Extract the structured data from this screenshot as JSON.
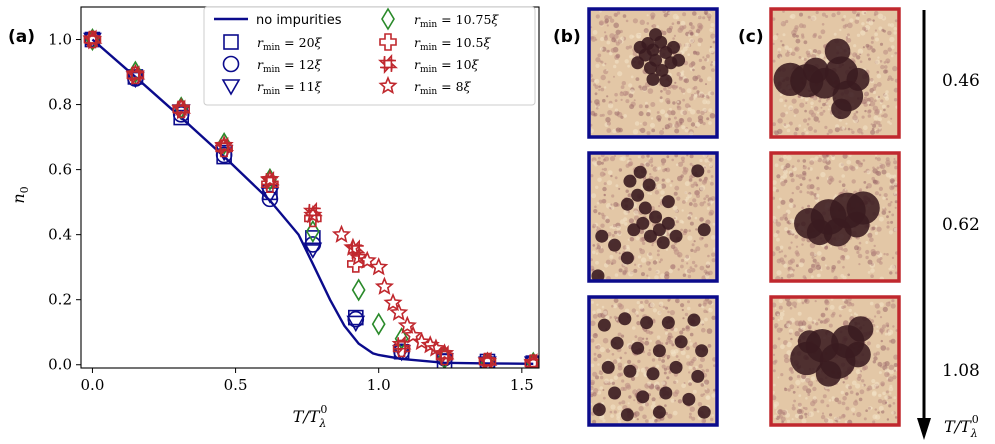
{
  "panel_labels": {
    "a": "(a)",
    "b": "(b)",
    "c": "(c)"
  },
  "colors": {
    "blue": "#0b0b8c",
    "green": "#2a8a2a",
    "red": "#c0282e",
    "texture_light": "#e3c7a6",
    "texture_dark": "#3a1b20"
  },
  "chart_data": {
    "type": "scatter",
    "xlabel": "T/T_λ^0",
    "ylabel": "n_0",
    "xlim": [
      -0.04,
      1.56
    ],
    "ylim": [
      -0.01,
      1.1
    ],
    "xticks": [
      0.0,
      0.5,
      1.0,
      1.5
    ],
    "xtick_labels": [
      "0.0",
      "0.5",
      "1.0",
      "1.5"
    ],
    "yticks": [
      0.0,
      0.2,
      0.4,
      0.6,
      0.8,
      1.0
    ],
    "ytick_labels": [
      "0.0",
      "0.2",
      "0.4",
      "0.6",
      "0.8",
      "1.0"
    ],
    "grid": false,
    "legend_position": "top-right",
    "line": {
      "name": "no impurities",
      "marker": "line",
      "color": "blue",
      "x": [
        0.0,
        0.15,
        0.31,
        0.46,
        0.62,
        0.72,
        0.77,
        0.83,
        0.88,
        0.93,
        0.98,
        1.0,
        1.08,
        1.23,
        1.38,
        1.54
      ],
      "y": [
        1.0,
        0.885,
        0.76,
        0.64,
        0.505,
        0.4,
        0.31,
        0.2,
        0.12,
        0.065,
        0.035,
        0.03,
        0.018,
        0.006,
        0.004,
        0.003
      ]
    },
    "series": [
      {
        "name": "r_min = 20ξ",
        "legend": "$r_{\\rm min} = 20\\xi$",
        "marker": "square",
        "color": "blue",
        "x": [
          0.0,
          0.15,
          0.31,
          0.46,
          0.62,
          0.77,
          0.92,
          1.08,
          1.23,
          1.38,
          1.54
        ],
        "y": [
          1.0,
          0.885,
          0.76,
          0.64,
          0.53,
          0.39,
          0.145,
          0.04,
          0.01,
          0.01,
          0.005
        ]
      },
      {
        "name": "r_min = 12ξ",
        "legend": "$r_{\\rm min} = 12\\xi$",
        "marker": "circle",
        "color": "blue",
        "x": [
          0.0,
          0.15,
          0.31,
          0.46,
          0.62,
          0.77,
          0.92,
          1.08,
          1.23,
          1.38,
          1.54
        ],
        "y": [
          1.0,
          0.88,
          0.77,
          0.645,
          0.51,
          0.37,
          0.14,
          0.04,
          0.02,
          0.005,
          0.005
        ]
      },
      {
        "name": "r_min = 11ξ",
        "legend": "$r_{\\rm min} = 11\\xi$",
        "marker": "triangle-down",
        "color": "blue",
        "x": [
          0.0,
          0.15,
          0.31,
          0.46,
          0.62,
          0.77,
          0.92,
          1.08,
          1.23,
          1.38,
          1.54
        ],
        "y": [
          1.0,
          0.88,
          0.78,
          0.655,
          0.525,
          0.355,
          0.13,
          0.04,
          0.015,
          0.005,
          0.005
        ]
      },
      {
        "name": "r_min = 10.75ξ",
        "legend": "$r_{\\rm min} = 10.75\\xi$",
        "marker": "diamond",
        "color": "green",
        "x": [
          0.0,
          0.15,
          0.31,
          0.46,
          0.62,
          0.77,
          0.93,
          1.0,
          1.08,
          1.23,
          1.38,
          1.54
        ],
        "y": [
          1.0,
          0.9,
          0.79,
          0.68,
          0.57,
          0.41,
          0.23,
          0.125,
          0.08,
          0.02,
          0.005,
          0.005
        ]
      },
      {
        "name": "r_min = 10.5ξ",
        "legend": "$r_{\\rm min} = 10.5\\xi$",
        "marker": "cross",
        "color": "red",
        "x": [
          0.0,
          0.15,
          0.31,
          0.46,
          0.62,
          0.77,
          0.92,
          1.08,
          1.23,
          1.38,
          1.54
        ],
        "y": [
          1.0,
          0.89,
          0.785,
          0.665,
          0.555,
          0.45,
          0.31,
          0.05,
          0.025,
          0.01,
          0.005
        ]
      },
      {
        "name": "r_min = 10ξ",
        "legend": "$r_{\\rm min} = 10\\xi$",
        "marker": "x-circle",
        "color": "red",
        "x": [
          0.0,
          0.15,
          0.31,
          0.46,
          0.62,
          0.77,
          0.92,
          1.08,
          1.23,
          1.38,
          1.54
        ],
        "y": [
          1.0,
          0.89,
          0.785,
          0.67,
          0.565,
          0.47,
          0.355,
          0.06,
          0.03,
          0.01,
          0.005
        ]
      },
      {
        "name": "r_min = 8ξ",
        "legend": "$r_{\\rm min} = 8\\xi$",
        "marker": "star",
        "color": "red",
        "x": [
          0.0,
          0.15,
          0.31,
          0.46,
          0.62,
          0.77,
          0.87,
          0.91,
          0.93,
          0.96,
          1.0,
          1.02,
          1.05,
          1.07,
          1.1,
          1.12,
          1.15,
          1.18,
          1.2,
          1.23,
          1.38,
          1.54
        ],
        "y": [
          1.0,
          0.895,
          0.79,
          0.675,
          0.57,
          0.46,
          0.4,
          0.36,
          0.33,
          0.32,
          0.3,
          0.24,
          0.19,
          0.16,
          0.12,
          0.09,
          0.07,
          0.06,
          0.05,
          0.035,
          0.01,
          0.005
        ]
      }
    ]
  },
  "columns": {
    "b": {
      "border_color": "blue",
      "blob_style": "dots",
      "clusters": [
        [
          [
            0.5,
            0.32
          ],
          [
            0.46,
            0.27
          ],
          [
            0.56,
            0.26
          ],
          [
            0.6,
            0.34
          ],
          [
            0.52,
            0.4
          ],
          [
            0.44,
            0.36
          ],
          [
            0.4,
            0.3
          ],
          [
            0.64,
            0.42
          ],
          [
            0.57,
            0.48
          ],
          [
            0.48,
            0.46
          ],
          [
            0.52,
            0.2
          ],
          [
            0.66,
            0.3
          ],
          [
            0.38,
            0.42
          ],
          [
            0.7,
            0.4
          ],
          [
            0.6,
            0.56
          ],
          [
            0.5,
            0.55
          ]
        ],
        [
          [
            0.4,
            0.15
          ],
          [
            0.32,
            0.22
          ],
          [
            0.47,
            0.25
          ],
          [
            0.38,
            0.33
          ],
          [
            0.3,
            0.4
          ],
          [
            0.44,
            0.43
          ],
          [
            0.52,
            0.5
          ],
          [
            0.42,
            0.55
          ],
          [
            0.55,
            0.6
          ],
          [
            0.62,
            0.55
          ],
          [
            0.68,
            0.65
          ],
          [
            0.48,
            0.65
          ],
          [
            0.58,
            0.7
          ],
          [
            0.35,
            0.6
          ],
          [
            0.62,
            0.38
          ],
          [
            0.1,
            0.65
          ],
          [
            0.2,
            0.72
          ],
          [
            0.07,
            0.96
          ],
          [
            0.3,
            0.82
          ],
          [
            0.85,
            0.14
          ],
          [
            0.9,
            0.6
          ]
        ],
        [
          [
            0.12,
            0.22
          ],
          [
            0.28,
            0.17
          ],
          [
            0.45,
            0.2
          ],
          [
            0.62,
            0.2
          ],
          [
            0.82,
            0.18
          ],
          [
            0.22,
            0.36
          ],
          [
            0.38,
            0.4
          ],
          [
            0.55,
            0.42
          ],
          [
            0.72,
            0.35
          ],
          [
            0.88,
            0.42
          ],
          [
            0.15,
            0.55
          ],
          [
            0.32,
            0.58
          ],
          [
            0.5,
            0.6
          ],
          [
            0.68,
            0.55
          ],
          [
            0.85,
            0.62
          ],
          [
            0.2,
            0.75
          ],
          [
            0.42,
            0.78
          ],
          [
            0.6,
            0.75
          ],
          [
            0.78,
            0.8
          ],
          [
            0.3,
            0.92
          ],
          [
            0.55,
            0.9
          ],
          [
            0.08,
            0.88
          ],
          [
            0.9,
            0.9
          ]
        ]
      ]
    },
    "c": {
      "border_color": "red",
      "blob_style": "solid",
      "clusters": [
        [
          [
            0.15,
            0.55,
            0.13
          ],
          [
            0.28,
            0.56,
            0.13
          ],
          [
            0.42,
            0.58,
            0.12
          ],
          [
            0.55,
            0.5,
            0.13
          ],
          [
            0.52,
            0.33,
            0.1
          ],
          [
            0.6,
            0.68,
            0.12
          ],
          [
            0.55,
            0.78,
            0.08
          ],
          [
            0.35,
            0.48,
            0.1
          ],
          [
            0.68,
            0.55,
            0.09
          ]
        ],
        [
          [
            0.3,
            0.55,
            0.12
          ],
          [
            0.45,
            0.5,
            0.14
          ],
          [
            0.6,
            0.45,
            0.14
          ],
          [
            0.72,
            0.43,
            0.13
          ],
          [
            0.52,
            0.62,
            0.11
          ],
          [
            0.38,
            0.62,
            0.1
          ],
          [
            0.67,
            0.56,
            0.1
          ]
        ],
        [
          [
            0.28,
            0.48,
            0.13
          ],
          [
            0.4,
            0.38,
            0.13
          ],
          [
            0.52,
            0.5,
            0.14
          ],
          [
            0.6,
            0.35,
            0.13
          ],
          [
            0.7,
            0.25,
            0.1
          ],
          [
            0.68,
            0.45,
            0.1
          ],
          [
            0.45,
            0.6,
            0.1
          ],
          [
            0.3,
            0.35,
            0.09
          ]
        ]
      ]
    }
  },
  "temperatures": [
    "0.46",
    "0.62",
    "1.08"
  ],
  "temp_axis_label": "T/T_λ^0"
}
